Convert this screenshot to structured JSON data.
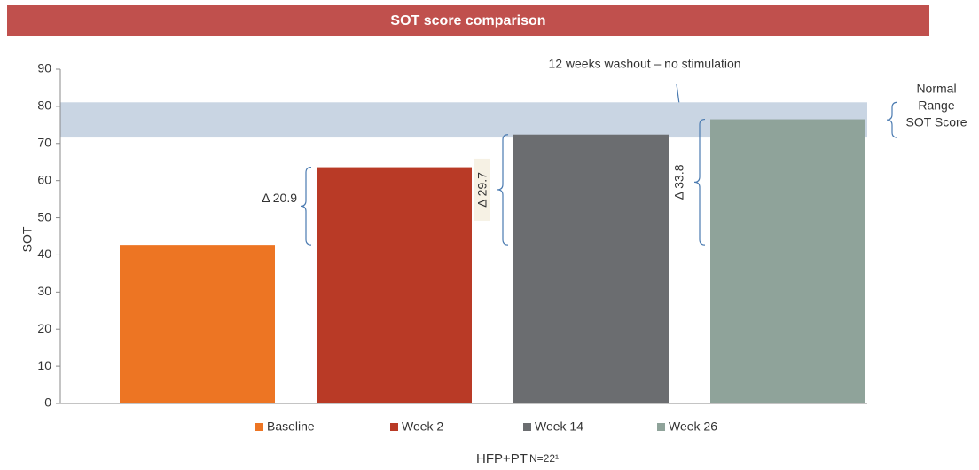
{
  "chart_data": {
    "type": "bar",
    "title": "SOT score comparison",
    "y_label": "SOT",
    "x_label": "HFP+PT",
    "footnote": "N=22¹",
    "categories": [
      "Baseline",
      "Week 2",
      "Week 14",
      "Week 26"
    ],
    "values": [
      42.7,
      63.6,
      72.4,
      76.5
    ],
    "colors": [
      "#ed7523",
      "#b93a26",
      "#6b6d70",
      "#8fa39a"
    ],
    "ylim": [
      0,
      90
    ],
    "yticks": [
      0,
      10,
      20,
      30,
      40,
      50,
      60,
      70,
      80,
      90
    ],
    "normal_range": [
      71.6,
      81.1
    ],
    "normal_range_label": [
      "Normal",
      "Range",
      "SOT Score"
    ],
    "annotation": "12 weeks washout – no stimulation",
    "delta_labels": [
      "Δ 20.9",
      "Δ 29.7",
      "Δ 33.8"
    ],
    "legend": "bottom"
  }
}
